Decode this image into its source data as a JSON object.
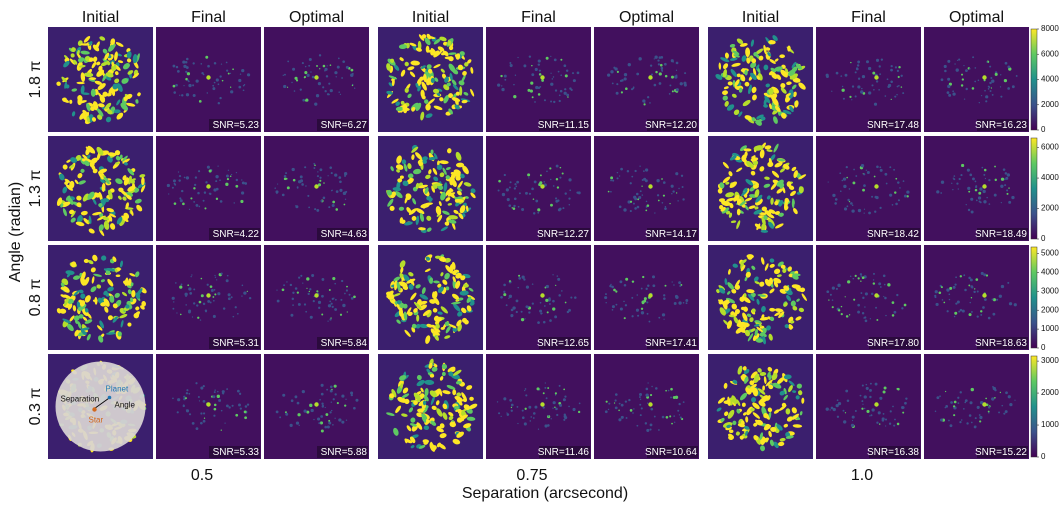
{
  "column_titles": [
    "Initial",
    "Final",
    "Optimal"
  ],
  "row_labels": [
    "1.8 π",
    "1.3 π",
    "0.8 π",
    "0.3 π"
  ],
  "y_axis_label": "Angle (radian)",
  "x_axis_label": "Separation (arcsecond)",
  "separations": [
    "0.5",
    "0.75",
    "1.0"
  ],
  "snr": [
    [
      [
        "SNR=5.23",
        "SNR=6.27"
      ],
      [
        "SNR=11.15",
        "SNR=12.20"
      ],
      [
        "SNR=17.48",
        "SNR=16.23"
      ]
    ],
    [
      [
        "SNR=4.22",
        "SNR=4.63"
      ],
      [
        "SNR=12.27",
        "SNR=14.17"
      ],
      [
        "SNR=18.42",
        "SNR=18.49"
      ]
    ],
    [
      [
        "SNR=5.31",
        "SNR=5.84"
      ],
      [
        "SNR=12.65",
        "SNR=17.41"
      ],
      [
        "SNR=17.80",
        "SNR=18.63"
      ]
    ],
    [
      [
        "SNR=5.33",
        "SNR=5.88"
      ],
      [
        "SNR=11.46",
        "SNR=10.64"
      ],
      [
        "SNR=16.38",
        "SNR=15.22"
      ]
    ]
  ],
  "colorbar_lims": [
    [
      0,
      8000
    ],
    [
      0,
      6630
    ],
    [
      0,
      5350
    ],
    [
      0,
      3160
    ]
  ],
  "colorbar_ticks": [
    [
      0,
      2000,
      4000,
      6000,
      8000
    ],
    [
      0,
      2000,
      4000,
      6000
    ],
    [
      0,
      1000,
      2000,
      3000,
      4000,
      5000
    ],
    [
      0,
      1000,
      2000,
      3000
    ]
  ],
  "inset": {
    "separation": "Separation",
    "planet": "Planet",
    "angle": "Angle",
    "star": "Star"
  }
}
